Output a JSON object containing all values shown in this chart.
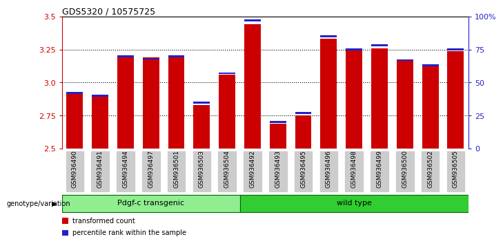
{
  "title": "GDS5320 / 10575725",
  "samples": [
    "GSM936490",
    "GSM936491",
    "GSM936494",
    "GSM936497",
    "GSM936501",
    "GSM936503",
    "GSM936504",
    "GSM936492",
    "GSM936493",
    "GSM936495",
    "GSM936496",
    "GSM936498",
    "GSM936499",
    "GSM936500",
    "GSM936502",
    "GSM936505"
  ],
  "transformed_count": [
    2.92,
    2.9,
    3.2,
    3.19,
    3.19,
    2.83,
    3.06,
    3.44,
    2.69,
    2.75,
    3.33,
    3.25,
    3.26,
    3.17,
    3.14,
    3.24
  ],
  "percentile_rank_pct": [
    42,
    40,
    70,
    68,
    70,
    35,
    57,
    97,
    20,
    27,
    85,
    75,
    78,
    67,
    63,
    75
  ],
  "n_transgenic": 7,
  "groups": [
    {
      "label": "Pdgf-c transgenic",
      "color": "#90EE90"
    },
    {
      "label": "wild type",
      "color": "#3CB83C"
    }
  ],
  "ylim_left": [
    2.5,
    3.5
  ],
  "ylim_right": [
    0,
    100
  ],
  "yticks_left": [
    2.5,
    2.75,
    3.0,
    3.25,
    3.5
  ],
  "yticks_right": [
    0,
    25,
    50,
    75,
    100
  ],
  "ytick_right_labels": [
    "0",
    "25",
    "50",
    "75",
    "100%"
  ],
  "red_color": "#CC0000",
  "blue_color": "#2222CC",
  "bar_width": 0.65,
  "genotype_label": "genotype/variation",
  "legend_items": [
    {
      "color": "#CC0000",
      "label": "transformed count"
    },
    {
      "color": "#2222CC",
      "label": "percentile rank within the sample"
    }
  ]
}
